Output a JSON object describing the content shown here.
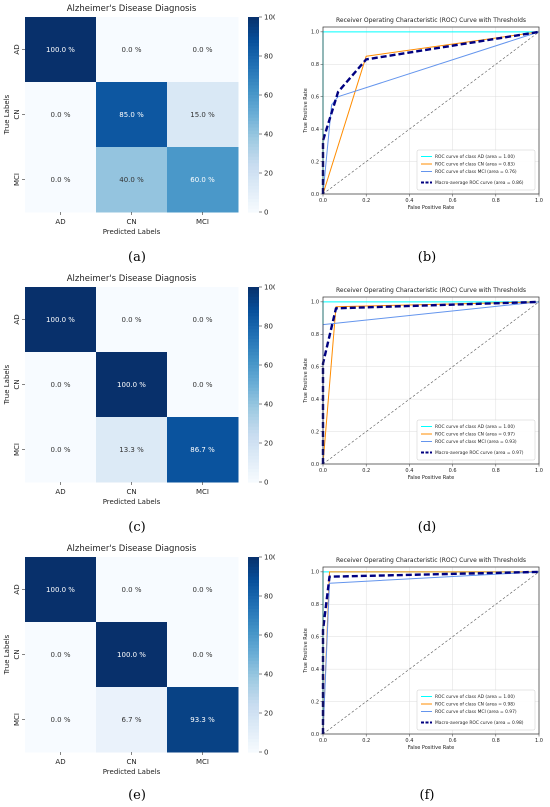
{
  "chart_data": [
    {
      "type": "heatmap",
      "panel": "(a)",
      "title": "Alzheimer's Disease Diagnosis",
      "xlabel": "Predicted Labels",
      "ylabel": "True Labels",
      "categories": [
        "AD",
        "CN",
        "MCI"
      ],
      "values": [
        [
          100.0,
          0.0,
          0.0
        ],
        [
          0.0,
          85.0,
          15.0
        ],
        [
          0.0,
          40.0,
          60.0
        ]
      ],
      "cell_labels": [
        [
          "100.0 %",
          "0.0 %",
          "0.0 %"
        ],
        [
          "0.0 %",
          "85.0 %",
          "15.0 %"
        ],
        [
          "0.0 %",
          "40.0 %",
          "60.0 %"
        ]
      ],
      "colorbar_ticks": [
        0,
        20,
        40,
        60,
        80,
        100
      ],
      "colorbar_range": [
        0,
        100
      ],
      "colormap": "Blues"
    },
    {
      "type": "line",
      "panel": "(b)",
      "title": "Receiver Operating Characteristic (ROC) Curve with Thresholds",
      "xlabel": "False Positive Rate",
      "ylabel": "True Positive Rate",
      "xlim": [
        0,
        1
      ],
      "ylim": [
        0,
        1.03
      ],
      "xticks": [
        "0.0",
        "0.2",
        "0.4",
        "0.6",
        "0.8",
        "1.0"
      ],
      "yticks": [
        "0.0",
        "0.2",
        "0.4",
        "0.6",
        "0.8",
        "1.0"
      ],
      "grid": true,
      "legend_position": "lower-right",
      "series": [
        {
          "name": "ROC curve of class AD (area = 1.00)",
          "color": "#00ffff",
          "style": "solid",
          "x": [
            0,
            0,
            1
          ],
          "y": [
            0,
            1,
            1
          ]
        },
        {
          "name": "ROC curve of class CN (area = 0.83)",
          "color": "#ff8c00",
          "style": "solid",
          "x": [
            0,
            0.2,
            1
          ],
          "y": [
            0,
            0.85,
            1
          ]
        },
        {
          "name": "ROC curve of class MCI (area = 0.76)",
          "color": "#6495ed",
          "style": "solid",
          "x": [
            0,
            0.04,
            0.07,
            1
          ],
          "y": [
            0,
            0.55,
            0.6,
            1
          ]
        },
        {
          "name": "Macro-average ROC curve (area = 0.86)",
          "color": "#000080",
          "style": "macro",
          "x": [
            0,
            0,
            0.07,
            0.2,
            1
          ],
          "y": [
            0,
            0.33,
            0.63,
            0.83,
            1
          ]
        }
      ]
    },
    {
      "type": "heatmap",
      "panel": "(c)",
      "title": "Alzheimer's Disease Diagnosis",
      "xlabel": "Predicted Labels",
      "ylabel": "True Labels",
      "categories": [
        "AD",
        "CN",
        "MCI"
      ],
      "values": [
        [
          100.0,
          0.0,
          0.0
        ],
        [
          0.0,
          100.0,
          0.0
        ],
        [
          0.0,
          13.3,
          86.7
        ]
      ],
      "cell_labels": [
        [
          "100.0 %",
          "0.0 %",
          "0.0 %"
        ],
        [
          "0.0 %",
          "100.0 %",
          "0.0 %"
        ],
        [
          "0.0 %",
          "13.3 %",
          "86.7 %"
        ]
      ],
      "colorbar_ticks": [
        0,
        20,
        40,
        60,
        80,
        100
      ],
      "colorbar_range": [
        0,
        100
      ],
      "colormap": "Blues"
    },
    {
      "type": "line",
      "panel": "(d)",
      "title": "Receiver Operating Characteristic (ROC) Curve with Thresholds",
      "xlabel": "False Positive Rate",
      "ylabel": "True Positive Rate",
      "xlim": [
        0,
        1
      ],
      "ylim": [
        0,
        1.03
      ],
      "xticks": [
        "0.0",
        "0.2",
        "0.4",
        "0.6",
        "0.8",
        "1.0"
      ],
      "yticks": [
        "0.0",
        "0.2",
        "0.4",
        "0.6",
        "0.8",
        "1.0"
      ],
      "grid": true,
      "legend_position": "lower-right",
      "series": [
        {
          "name": "ROC curve of class AD (area = 1.00)",
          "color": "#00ffff",
          "style": "solid",
          "x": [
            0,
            0,
            1
          ],
          "y": [
            0,
            1,
            1
          ]
        },
        {
          "name": "ROC curve of class CN (area = 0.97)",
          "color": "#ff8c00",
          "style": "solid",
          "x": [
            0,
            0.06,
            1
          ],
          "y": [
            0,
            0.97,
            1
          ]
        },
        {
          "name": "ROC curve of class MCI (area = 0.93)",
          "color": "#6495ed",
          "style": "solid",
          "x": [
            0,
            0.0,
            1
          ],
          "y": [
            0,
            0.86,
            1
          ]
        },
        {
          "name": "Macro-average ROC curve (area = 0.97)",
          "color": "#000080",
          "style": "macro",
          "x": [
            0,
            0,
            0.06,
            1
          ],
          "y": [
            0,
            0.62,
            0.96,
            1
          ]
        }
      ]
    },
    {
      "type": "heatmap",
      "panel": "(e)",
      "title": "Alzheimer's Disease Diagnosis",
      "xlabel": "Predicted Labels",
      "ylabel": "True Labels",
      "categories": [
        "AD",
        "CN",
        "MCI"
      ],
      "values": [
        [
          100.0,
          0.0,
          0.0
        ],
        [
          0.0,
          100.0,
          0.0
        ],
        [
          0.0,
          6.7,
          93.3
        ]
      ],
      "cell_labels": [
        [
          "100.0 %",
          "0.0 %",
          "0.0 %"
        ],
        [
          "0.0 %",
          "100.0 %",
          "0.0 %"
        ],
        [
          "0.0 %",
          "6.7 %",
          "93.3 %"
        ]
      ],
      "colorbar_ticks": [
        0,
        20,
        40,
        60,
        80,
        100
      ],
      "colorbar_range": [
        0,
        100
      ],
      "colormap": "Blues"
    },
    {
      "type": "line",
      "panel": "(f)",
      "title": "Receiver Operating Characteristic (ROC) Curve with Thresholds",
      "xlabel": "False Positive Rate",
      "ylabel": "True Positive Rate",
      "xlim": [
        0,
        1
      ],
      "ylim": [
        0,
        1.03
      ],
      "xticks": [
        "0.0",
        "0.2",
        "0.4",
        "0.6",
        "0.8",
        "1.0"
      ],
      "yticks": [
        "0.0",
        "0.2",
        "0.4",
        "0.6",
        "0.8",
        "1.0"
      ],
      "grid": true,
      "legend_position": "lower-right",
      "series": [
        {
          "name": "ROC curve of class AD (area = 1.00)",
          "color": "#00ffff",
          "style": "solid",
          "x": [
            0,
            0,
            1
          ],
          "y": [
            0,
            1,
            1
          ]
        },
        {
          "name": "ROC curve of class CN (area = 0.98)",
          "color": "#ff8c00",
          "style": "solid",
          "x": [
            0,
            0.03,
            1
          ],
          "y": [
            0,
            1.0,
            1
          ]
        },
        {
          "name": "ROC curve of class MCI (area = 0.97)",
          "color": "#6495ed",
          "style": "solid",
          "x": [
            0,
            0.03,
            1
          ],
          "y": [
            0,
            0.93,
            1
          ]
        },
        {
          "name": "Macro-average ROC curve (area = 0.98)",
          "color": "#000080",
          "style": "macro",
          "x": [
            0,
            0,
            0.03,
            1
          ],
          "y": [
            0,
            0.64,
            0.97,
            1
          ]
        }
      ]
    }
  ]
}
